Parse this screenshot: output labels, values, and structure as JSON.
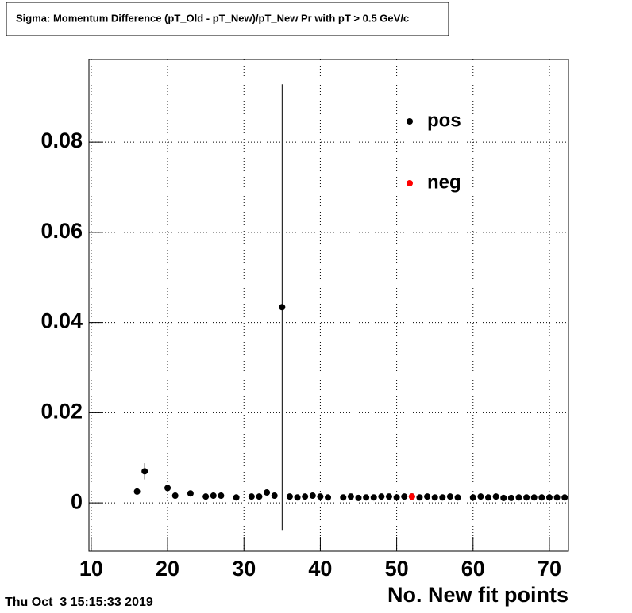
{
  "chart_data": {
    "type": "scatter",
    "title": "Sigma: Momentum Difference (pT_Old - pT_New)/pT_New Pr with pT > 0.5 GeV/c",
    "x_label": "No. New fit points",
    "timestamp": "Thu Oct  3 15:15:33 2019",
    "xlim": [
      9.7,
      72.5
    ],
    "ylim": [
      -0.0107,
      0.0983
    ],
    "xticks": [
      10,
      20,
      30,
      40,
      50,
      60,
      70
    ],
    "yticks": [
      0,
      0.02,
      0.04,
      0.06,
      0.08
    ],
    "grid": true,
    "legend_position": "upper right",
    "series": [
      {
        "name": "pos",
        "color": "#000000",
        "x": [
          16,
          17,
          20,
          21,
          23,
          25,
          26,
          27,
          29,
          31,
          32,
          33,
          34,
          35,
          36,
          37,
          38,
          39,
          40,
          41,
          43,
          44,
          45,
          46,
          47,
          48,
          49,
          50,
          51,
          52,
          53,
          54,
          55,
          56,
          57,
          58,
          60,
          61,
          62,
          63,
          64,
          65,
          66,
          67,
          68,
          69,
          70,
          71,
          72
        ],
        "values": [
          0.0025,
          0.007,
          0.0033,
          0.0016,
          0.0021,
          0.0014,
          0.0016,
          0.0016,
          0.0012,
          0.0014,
          0.0014,
          0.0023,
          0.0016,
          0.0434,
          0.0014,
          0.0012,
          0.0014,
          0.0016,
          0.0014,
          0.0012,
          0.0012,
          0.0014,
          0.0011,
          0.0012,
          0.0012,
          0.0014,
          0.0014,
          0.0012,
          0.0014,
          0.0014,
          0.0012,
          0.0014,
          0.0012,
          0.0012,
          0.0014,
          0.0012,
          0.0012,
          0.0014,
          0.0012,
          0.0014,
          0.0011,
          0.0011,
          0.0012,
          0.0012,
          0.0012,
          0.0012,
          0.0012,
          0.0012,
          0.0012
        ],
        "errors": [
          0.0002,
          0.0018,
          0.0002,
          0.0002,
          0.0002,
          0.0002,
          0.0002,
          0.0002,
          0.0002,
          0.0002,
          0.0002,
          0.0002,
          0.0002,
          0.0494,
          0.0002,
          0.0002,
          0.0002,
          0.0002,
          0.0002,
          0.0002,
          0.0002,
          0.0002,
          0.0002,
          0.0002,
          0.0002,
          0.0002,
          0.0002,
          0.0002,
          0.0002,
          0.0002,
          0.0002,
          0.0002,
          0.0002,
          0.0002,
          0.0002,
          0.0002,
          0.0002,
          0.0002,
          0.0002,
          0.0002,
          0.0002,
          0.0002,
          0.0002,
          0.0002,
          0.0002,
          0.0002,
          0.0002,
          0.0002,
          0.0002
        ]
      },
      {
        "name": "neg",
        "color": "#ff0000",
        "x": [
          52
        ],
        "values": [
          0.0014
        ],
        "errors": [
          0.0002
        ]
      }
    ]
  }
}
